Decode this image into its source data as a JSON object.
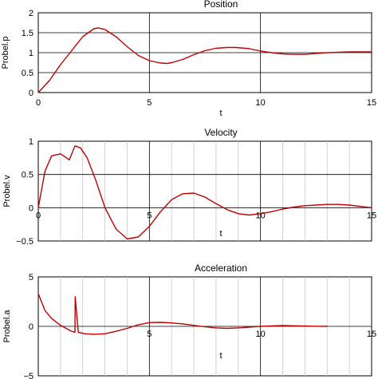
{
  "chart_data": [
    {
      "type": "line",
      "title": "Position",
      "xlabel": "t",
      "ylabel": "Probel.p",
      "xlim": [
        0,
        15
      ],
      "ylim": [
        0,
        2
      ],
      "xticks": [
        "0",
        "5",
        "10",
        "15"
      ],
      "yticks": [
        "0",
        "0.5",
        "1",
        "1.5",
        "2"
      ],
      "grid": true,
      "line_color": "#c00000",
      "x": [
        0,
        0.5,
        1,
        1.5,
        2,
        2.5,
        2.7,
        3,
        3.5,
        4,
        4.5,
        5,
        5.5,
        5.8,
        6,
        6.5,
        7,
        7.5,
        8,
        8.5,
        8.9,
        9.5,
        10,
        10.5,
        11,
        11.5,
        12,
        12.5,
        13,
        13.5,
        14,
        14.5,
        15
      ],
      "y": [
        0,
        0.3,
        0.7,
        1.05,
        1.4,
        1.6,
        1.62,
        1.58,
        1.4,
        1.15,
        0.93,
        0.8,
        0.74,
        0.73,
        0.75,
        0.83,
        0.95,
        1.05,
        1.11,
        1.13,
        1.13,
        1.1,
        1.04,
        1.0,
        0.97,
        0.96,
        0.96,
        0.98,
        1.0,
        1.01,
        1.02,
        1.02,
        1.02
      ]
    },
    {
      "type": "line",
      "title": "Velocity",
      "xlabel": "t",
      "ylabel": "Probel.v",
      "xlim": [
        0,
        15
      ],
      "ylim": [
        -0.5,
        1
      ],
      "xticks": [
        "0",
        "5",
        "10",
        "15"
      ],
      "yticks": [
        "−0.5",
        "0",
        "0.5",
        "1"
      ],
      "grid": true,
      "line_color": "#c00000",
      "x": [
        0,
        0.3,
        0.6,
        1,
        1.4,
        1.65,
        1.9,
        2.2,
        2.6,
        3,
        3.5,
        4,
        4.5,
        5,
        5.5,
        6,
        6.5,
        7,
        7.5,
        8,
        8.5,
        9,
        9.5,
        10,
        10.5,
        11,
        11.5,
        12,
        12.5,
        13,
        13.5,
        14,
        14.5,
        15
      ],
      "y": [
        0,
        0.55,
        0.78,
        0.81,
        0.72,
        0.93,
        0.9,
        0.75,
        0.4,
        0.0,
        -0.32,
        -0.47,
        -0.44,
        -0.28,
        -0.06,
        0.12,
        0.21,
        0.22,
        0.16,
        0.06,
        -0.03,
        -0.09,
        -0.11,
        -0.09,
        -0.06,
        -0.02,
        0.01,
        0.03,
        0.04,
        0.05,
        0.05,
        0.04,
        0.02,
        0.0
      ]
    },
    {
      "type": "line",
      "title": "Acceleration",
      "xlabel": "t",
      "ylabel": "Probel.a",
      "xlim": [
        0,
        15
      ],
      "ylim": [
        -5,
        5
      ],
      "xticks": [
        "5",
        "10",
        "15"
      ],
      "yticks": [
        "−5",
        "0",
        "5"
      ],
      "grid": true,
      "line_color": "#c00000",
      "x": [
        0,
        0.3,
        0.6,
        1,
        1.5,
        1.65,
        1.66,
        1.8,
        2.1,
        2.5,
        3,
        3.5,
        4,
        4.5,
        5,
        5.5,
        6,
        6.5,
        7,
        7.5,
        8,
        8.5,
        9,
        9.5,
        10,
        10.5,
        11,
        11.5,
        12,
        12.5,
        13
      ],
      "y": [
        3.3,
        1.6,
        0.8,
        0.1,
        -0.5,
        -0.6,
        3.0,
        -0.6,
        -0.75,
        -0.8,
        -0.75,
        -0.5,
        -0.2,
        0.15,
        0.38,
        0.4,
        0.35,
        0.25,
        0.1,
        -0.05,
        -0.15,
        -0.2,
        -0.15,
        -0.08,
        0.0,
        0.05,
        0.08,
        0.06,
        0.03,
        0.01,
        0.0
      ]
    }
  ]
}
